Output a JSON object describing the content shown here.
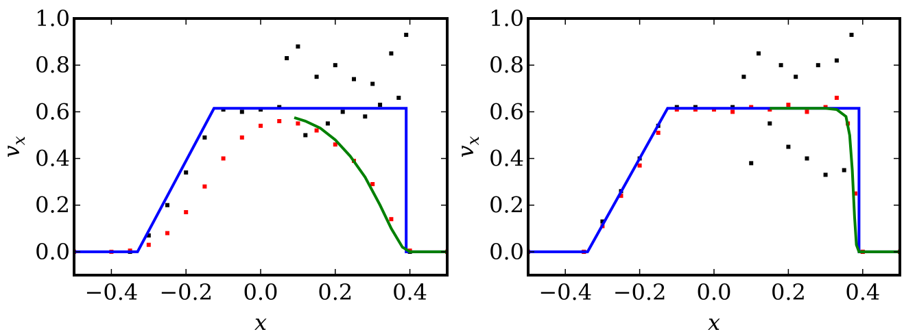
{
  "chart_data": [
    {
      "type": "scatter",
      "xlabel": "x",
      "ylabel": "v_x",
      "xlim": [
        -0.5,
        0.5
      ],
      "ylim": [
        -0.1,
        1.0
      ],
      "xticks": [
        -0.4,
        -0.2,
        0.0,
        0.2,
        0.4
      ],
      "xtick_labels": [
        "−0.4",
        "−0.2",
        "0.0",
        "0.2",
        "0.4"
      ],
      "yticks": [
        0.0,
        0.2,
        0.4,
        0.6,
        0.8,
        1.0
      ],
      "ytick_labels": [
        "0.0",
        "0.2",
        "0.4",
        "0.6",
        "0.8",
        "1.0"
      ],
      "grid": false,
      "series": [
        {
          "kind": "line",
          "color": "#0000ff",
          "x": [
            -0.5,
            -0.33,
            -0.125,
            0.39,
            0.39,
            0.5
          ],
          "y": [
            0.0,
            0.0,
            0.615,
            0.615,
            0.0,
            0.0
          ]
        },
        {
          "kind": "line",
          "color": "#008000",
          "x": [
            0.09,
            0.12,
            0.16,
            0.2,
            0.24,
            0.28,
            0.32,
            0.35,
            0.38,
            0.4,
            0.45,
            0.5
          ],
          "y": [
            0.575,
            0.56,
            0.53,
            0.48,
            0.41,
            0.32,
            0.2,
            0.1,
            0.02,
            0.0,
            0.0,
            0.0
          ]
        },
        {
          "kind": "points",
          "color": "#ff0000",
          "x": [
            -0.5,
            -0.4,
            -0.35,
            -0.3,
            -0.25,
            -0.2,
            -0.15,
            -0.1,
            -0.05,
            0.0,
            0.05,
            0.1,
            0.15,
            0.2,
            0.25,
            0.3,
            0.35,
            0.4,
            0.5
          ],
          "y": [
            0.0,
            0.0,
            0.005,
            0.03,
            0.08,
            0.17,
            0.28,
            0.4,
            0.49,
            0.54,
            0.56,
            0.55,
            0.52,
            0.46,
            0.39,
            0.29,
            0.14,
            0.005,
            0.0
          ]
        },
        {
          "kind": "points",
          "color": "#000000",
          "x": [
            -0.5,
            -0.35,
            -0.3,
            -0.25,
            -0.2,
            -0.15,
            -0.1,
            -0.05,
            0.0,
            0.05,
            0.07,
            0.1,
            0.12,
            0.15,
            0.18,
            0.2,
            0.22,
            0.25,
            0.28,
            0.3,
            0.32,
            0.35,
            0.37,
            0.39,
            0.4,
            0.5
          ],
          "y": [
            0.0,
            0.0,
            0.07,
            0.2,
            0.34,
            0.49,
            0.61,
            0.6,
            0.61,
            0.62,
            0.83,
            0.88,
            0.5,
            0.75,
            0.55,
            0.8,
            0.6,
            0.74,
            0.58,
            0.72,
            0.63,
            0.85,
            0.66,
            0.93,
            0.0,
            0.0
          ]
        }
      ]
    },
    {
      "type": "scatter",
      "xlabel": "x",
      "ylabel": "v_x",
      "xlim": [
        -0.5,
        0.5
      ],
      "ylim": [
        -0.1,
        1.0
      ],
      "xticks": [
        -0.4,
        -0.2,
        0.0,
        0.2,
        0.4
      ],
      "xtick_labels": [
        "−0.4",
        "−0.2",
        "0.0",
        "0.2",
        "0.4"
      ],
      "yticks": [
        0.0,
        0.2,
        0.4,
        0.6,
        0.8,
        1.0
      ],
      "ytick_labels": [
        "0.0",
        "0.2",
        "0.4",
        "0.6",
        "0.8",
        "1.0"
      ],
      "grid": false,
      "series": [
        {
          "kind": "line",
          "color": "#0000ff",
          "x": [
            -0.5,
            -0.34,
            -0.125,
            0.39,
            0.39,
            0.5
          ],
          "y": [
            0.0,
            0.0,
            0.615,
            0.615,
            0.0,
            0.0
          ]
        },
        {
          "kind": "line",
          "color": "#008000",
          "x": [
            0.15,
            0.2,
            0.25,
            0.3,
            0.33,
            0.355,
            0.365,
            0.372,
            0.378,
            0.383,
            0.39,
            0.45,
            0.5
          ],
          "y": [
            0.615,
            0.615,
            0.615,
            0.615,
            0.61,
            0.58,
            0.5,
            0.35,
            0.15,
            0.03,
            0.0,
            0.0,
            0.0
          ]
        },
        {
          "kind": "points",
          "color": "#ff0000",
          "x": [
            -0.5,
            -0.35,
            -0.3,
            -0.25,
            -0.2,
            -0.15,
            -0.1,
            -0.05,
            0.0,
            0.05,
            0.1,
            0.15,
            0.2,
            0.25,
            0.3,
            0.33,
            0.36,
            0.38,
            0.4,
            0.5
          ],
          "y": [
            0.0,
            0.0,
            0.11,
            0.24,
            0.37,
            0.51,
            0.61,
            0.61,
            0.61,
            0.6,
            0.62,
            0.61,
            0.63,
            0.6,
            0.62,
            0.66,
            0.55,
            0.25,
            0.0,
            0.0
          ]
        },
        {
          "kind": "points",
          "color": "#000000",
          "x": [
            -0.5,
            -0.35,
            -0.3,
            -0.25,
            -0.2,
            -0.15,
            -0.1,
            -0.05,
            0.0,
            0.05,
            0.08,
            0.1,
            0.12,
            0.15,
            0.18,
            0.2,
            0.22,
            0.25,
            0.28,
            0.3,
            0.33,
            0.35,
            0.37,
            0.4,
            0.5
          ],
          "y": [
            0.0,
            0.0,
            0.13,
            0.26,
            0.4,
            0.54,
            0.62,
            0.62,
            0.61,
            0.62,
            0.75,
            0.38,
            0.85,
            0.55,
            0.8,
            0.45,
            0.75,
            0.4,
            0.8,
            0.33,
            0.82,
            0.35,
            0.93,
            0.0,
            0.0
          ]
        }
      ]
    }
  ]
}
